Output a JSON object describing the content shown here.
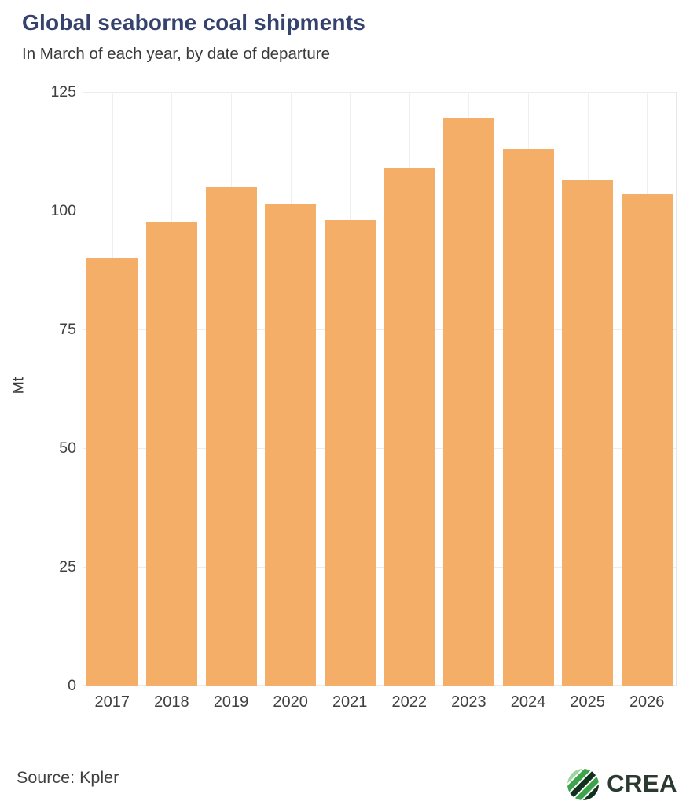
{
  "header": {
    "title": "Global seaborne coal shipments",
    "subtitle": "In March of each year, by date of departure"
  },
  "chart_data": {
    "type": "bar",
    "title": "Global seaborne coal shipments",
    "subtitle": "In March of each year, by date of departure",
    "categories": [
      "2017",
      "2018",
      "2019",
      "2020",
      "2021",
      "2022",
      "2023",
      "2024",
      "2025",
      "2026"
    ],
    "values": [
      90,
      97.5,
      105,
      101.5,
      98,
      109,
      119.5,
      113,
      106.5,
      103.5
    ],
    "xlabel": "",
    "ylabel": "Mt",
    "ylim": [
      0,
      125
    ],
    "yticks": [
      0,
      25,
      50,
      75,
      100,
      125
    ],
    "grid": "on",
    "legend": "none",
    "bar_color": "#f5ae68"
  },
  "footer": {
    "source": "Source: Kpler",
    "logo_text": "CREA"
  },
  "colors": {
    "title": "#35426e",
    "subtitle": "#3a3a3a",
    "axis_text": "#404040",
    "grid": "#ececec",
    "bar": "#f5ae68",
    "background": "#ffffff",
    "logo_word": "#2b3a31",
    "logo_stripes": [
      "#9ed4a0",
      "#3da44b",
      "#11301d",
      "#3da44b",
      "#11301d"
    ]
  }
}
